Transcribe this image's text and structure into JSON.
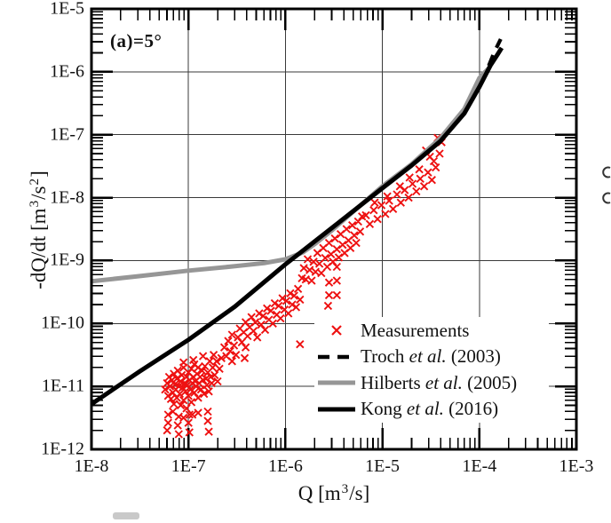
{
  "annotation": {
    "text": "(a)=5°"
  },
  "axes": {
    "x": {
      "title_parts": {
        "pre": "Q [m",
        "sup": "3",
        "post": "/s]"
      },
      "ticks": [
        "1E-8",
        "1E-7",
        "1E-6",
        "1E-5",
        "1E-4",
        "1E-3"
      ],
      "tick_logs": [
        -8,
        -7,
        -6,
        -5,
        -4,
        -3
      ],
      "log_range": [
        -8,
        -3
      ]
    },
    "y": {
      "title_parts": {
        "pre": "-dQ/dt [m",
        "sup1": "3",
        "mid": "/s",
        "sup2": "2",
        "post": "]"
      },
      "ticks": [
        "1E-5",
        "1E-6",
        "1E-7",
        "1E-8",
        "1E-9",
        "1E-10",
        "1E-11",
        "1E-12"
      ],
      "tick_logs": [
        -5,
        -6,
        -7,
        -8,
        -9,
        -10,
        -11,
        -12
      ],
      "log_range": [
        -12,
        -5
      ]
    }
  },
  "legend": {
    "items": [
      {
        "marker": "cross",
        "color": "#ee1111",
        "pre": "Measurements",
        "italic": "",
        "post": ""
      },
      {
        "marker": "dashed-line",
        "color": "#000000",
        "pre": "Troch ",
        "italic": "et al.",
        "post": " (2003)"
      },
      {
        "marker": "thick-line",
        "color": "#969696",
        "pre": "Hilberts ",
        "italic": "et al.",
        "post": " (2005)"
      },
      {
        "marker": "thick-line",
        "color": "#000000",
        "pre": "Kong ",
        "italic": "et al.",
        "post": " (2016)"
      }
    ]
  },
  "colors": {
    "measurements": "#ee1111",
    "troch": "#000000",
    "hilberts": "#969696",
    "kong": "#000000",
    "grid": "#3a3a3a",
    "frame": "#000000"
  },
  "artifacts": {
    "corner_smudge_color": "#bfbfbf",
    "edge_glyph_color": "#333333"
  },
  "chart_data": {
    "type": "scatter",
    "x_scale": "log",
    "y_scale": "log",
    "title": "",
    "xlabel": "Q [m^3/s]",
    "ylabel": "-dQ/dt [m^3/s^2]",
    "xlim": [
      1e-08,
      0.001
    ],
    "ylim": [
      1e-12,
      1e-05
    ],
    "grid": true,
    "legend_position": "lower right",
    "annotation": "(a)=5°",
    "series": [
      {
        "name": "Measurements",
        "type": "scatter",
        "marker": "x",
        "color": "#ee1111",
        "points_log10": [
          [
            -7.24,
            -11.05
          ],
          [
            -7.22,
            -10.95
          ],
          [
            -7.21,
            -11.15
          ],
          [
            -7.2,
            -10.85
          ],
          [
            -7.19,
            -11.0
          ],
          [
            -7.18,
            -11.2
          ],
          [
            -7.17,
            -10.9
          ],
          [
            -7.16,
            -11.1
          ],
          [
            -7.15,
            -10.8
          ],
          [
            -7.15,
            -11.28
          ],
          [
            -7.14,
            -10.97
          ],
          [
            -7.13,
            -11.05
          ],
          [
            -7.12,
            -10.88
          ],
          [
            -7.12,
            -11.18
          ],
          [
            -7.11,
            -10.75
          ],
          [
            -7.1,
            -11.0
          ],
          [
            -7.09,
            -11.12
          ],
          [
            -7.08,
            -10.92
          ],
          [
            -7.08,
            -11.3
          ],
          [
            -7.07,
            -10.82
          ],
          [
            -7.06,
            -11.02
          ],
          [
            -7.05,
            -10.7
          ],
          [
            -7.05,
            -11.22
          ],
          [
            -7.04,
            -10.95
          ],
          [
            -7.03,
            -11.08
          ],
          [
            -7.02,
            -10.85
          ],
          [
            -7.02,
            -11.35
          ],
          [
            -7.01,
            -10.98
          ],
          [
            -7.0,
            -10.78
          ],
          [
            -7.0,
            -11.15
          ],
          [
            -6.99,
            -10.9
          ],
          [
            -6.98,
            -11.05
          ],
          [
            -6.97,
            -10.72
          ],
          [
            -6.97,
            -11.25
          ],
          [
            -6.96,
            -10.95
          ],
          [
            -6.95,
            -10.85
          ],
          [
            -6.94,
            -11.1
          ],
          [
            -6.94,
            -10.65
          ],
          [
            -6.93,
            -10.92
          ],
          [
            -6.92,
            -11.0
          ],
          [
            -6.91,
            -10.8
          ],
          [
            -6.9,
            -11.18
          ],
          [
            -6.9,
            -10.7
          ],
          [
            -6.89,
            -10.95
          ],
          [
            -6.88,
            -10.85
          ],
          [
            -6.87,
            -11.05
          ],
          [
            -6.86,
            -10.75
          ],
          [
            -6.85,
            -10.9
          ],
          [
            -6.84,
            -11.12
          ],
          [
            -6.83,
            -10.68
          ],
          [
            -6.82,
            -10.88
          ],
          [
            -6.81,
            -10.98
          ],
          [
            -6.8,
            -10.78
          ],
          [
            -6.79,
            -11.08
          ],
          [
            -6.78,
            -10.6
          ],
          [
            -6.77,
            -10.85
          ],
          [
            -6.76,
            -10.95
          ],
          [
            -6.75,
            -10.7
          ],
          [
            -6.73,
            -10.82
          ],
          [
            -6.71,
            -10.6
          ],
          [
            -6.7,
            -10.92
          ],
          [
            -6.68,
            -10.72
          ],
          [
            -6.66,
            -10.55
          ],
          [
            -7.05,
            -10.62
          ],
          [
            -6.95,
            -10.58
          ],
          [
            -6.85,
            -10.52
          ],
          [
            -6.74,
            -10.5
          ],
          [
            -7.21,
            -11.45
          ],
          [
            -7.21,
            -11.58
          ],
          [
            -7.22,
            -11.7
          ],
          [
            -7.1,
            -11.48
          ],
          [
            -7.11,
            -11.62
          ],
          [
            -7.1,
            -11.76
          ],
          [
            -6.99,
            -11.45
          ],
          [
            -7.0,
            -11.58
          ],
          [
            -6.99,
            -11.73
          ],
          [
            -6.96,
            -11.45
          ],
          [
            -6.8,
            -11.4
          ],
          [
            -6.8,
            -11.55
          ],
          [
            -6.79,
            -11.72
          ],
          [
            -7.05,
            -11.5
          ],
          [
            -7.16,
            -11.4
          ],
          [
            -6.9,
            -11.42
          ],
          [
            -6.63,
            -10.38
          ],
          [
            -6.61,
            -10.52
          ],
          [
            -6.59,
            -10.28
          ],
          [
            -6.57,
            -10.44
          ],
          [
            -6.55,
            -10.18
          ],
          [
            -6.53,
            -10.35
          ],
          [
            -6.51,
            -10.5
          ],
          [
            -6.49,
            -10.22
          ],
          [
            -6.47,
            -10.08
          ],
          [
            -6.45,
            -10.3
          ],
          [
            -6.43,
            -10.14
          ],
          [
            -6.41,
            -9.98
          ],
          [
            -6.41,
            -10.38
          ],
          [
            -6.39,
            -10.2
          ],
          [
            -6.37,
            -10.06
          ],
          [
            -6.35,
            -9.9
          ],
          [
            -6.33,
            -10.12
          ],
          [
            -6.31,
            -9.98
          ],
          [
            -6.29,
            -10.22
          ],
          [
            -6.27,
            -9.84
          ],
          [
            -6.25,
            -10.02
          ],
          [
            -6.23,
            -9.88
          ],
          [
            -6.21,
            -10.1
          ],
          [
            -6.19,
            -9.76
          ],
          [
            -6.17,
            -9.94
          ],
          [
            -6.15,
            -9.8
          ],
          [
            -6.13,
            -10.0
          ],
          [
            -6.11,
            -9.68
          ],
          [
            -6.09,
            -9.86
          ],
          [
            -6.07,
            -9.72
          ],
          [
            -6.05,
            -9.92
          ],
          [
            -6.03,
            -9.6
          ],
          [
            -6.01,
            -9.78
          ],
          [
            -5.99,
            -9.64
          ],
          [
            -5.97,
            -9.84
          ],
          [
            -5.95,
            -9.52
          ],
          [
            -5.93,
            -9.7
          ],
          [
            -5.91,
            -9.56
          ],
          [
            -5.89,
            -9.74
          ],
          [
            -5.87,
            -9.45
          ],
          [
            -5.85,
            -9.62
          ],
          [
            -6.55,
            -10.6
          ],
          [
            -6.42,
            -10.55
          ],
          [
            -5.85,
            -10.33
          ],
          [
            -5.83,
            -9.28
          ],
          [
            -5.81,
            -9.12
          ],
          [
            -5.79,
            -9.3
          ],
          [
            -5.77,
            -8.98
          ],
          [
            -5.75,
            -9.15
          ],
          [
            -5.73,
            -9.32
          ],
          [
            -5.71,
            -9.02
          ],
          [
            -5.69,
            -9.18
          ],
          [
            -5.67,
            -8.88
          ],
          [
            -5.65,
            -9.05
          ],
          [
            -5.63,
            -9.2
          ],
          [
            -5.61,
            -8.8
          ],
          [
            -5.59,
            -8.96
          ],
          [
            -5.57,
            -9.1
          ],
          [
            -5.55,
            -8.72
          ],
          [
            -5.53,
            -8.9
          ],
          [
            -5.51,
            -9.02
          ],
          [
            -5.49,
            -8.65
          ],
          [
            -5.47,
            -8.82
          ],
          [
            -5.45,
            -8.95
          ],
          [
            -5.43,
            -8.58
          ],
          [
            -5.41,
            -8.75
          ],
          [
            -5.39,
            -8.88
          ],
          [
            -5.37,
            -8.5
          ],
          [
            -5.35,
            -8.68
          ],
          [
            -5.33,
            -8.8
          ],
          [
            -5.31,
            -8.44
          ],
          [
            -5.29,
            -8.6
          ],
          [
            -5.27,
            -8.72
          ],
          [
            -5.25,
            -8.38
          ],
          [
            -5.23,
            -8.54
          ],
          [
            -5.21,
            -8.3
          ],
          [
            -5.55,
            -9.35
          ],
          [
            -5.55,
            -9.55
          ],
          [
            -5.56,
            -9.72
          ],
          [
            -5.47,
            -9.1
          ],
          [
            -5.47,
            -9.32
          ],
          [
            -5.47,
            -9.55
          ],
          [
            -5.17,
            -8.28
          ],
          [
            -5.13,
            -8.42
          ],
          [
            -5.09,
            -8.2
          ],
          [
            -5.05,
            -8.34
          ],
          [
            -5.01,
            -8.12
          ],
          [
            -4.97,
            -8.26
          ],
          [
            -4.93,
            -8.05
          ],
          [
            -4.89,
            -8.18
          ],
          [
            -4.85,
            -7.95
          ],
          [
            -4.81,
            -8.08
          ],
          [
            -4.77,
            -7.88
          ],
          [
            -4.73,
            -8.0
          ],
          [
            -4.69,
            -7.78
          ],
          [
            -4.65,
            -7.9
          ],
          [
            -4.61,
            -7.7
          ],
          [
            -4.57,
            -7.82
          ],
          [
            -4.53,
            -7.6
          ],
          [
            -4.49,
            -7.72
          ],
          [
            -4.45,
            -7.52
          ],
          [
            -4.41,
            -7.3
          ],
          [
            -4.39,
            -7.12
          ],
          [
            -4.43,
            -7.05
          ],
          [
            -4.47,
            -7.42
          ],
          [
            -4.51,
            -7.35
          ],
          [
            -4.55,
            -7.25
          ],
          [
            -4.62,
            -7.55
          ],
          [
            -4.72,
            -7.68
          ],
          [
            -4.82,
            -7.82
          ],
          [
            -4.95,
            -7.98
          ],
          [
            -5.08,
            -8.08
          ]
        ]
      },
      {
        "name": "Troch et al. (2003)",
        "type": "line",
        "style": "dashed",
        "color": "#000000",
        "width": 4.2,
        "points_log10": [
          [
            -8,
            -11.28
          ],
          [
            -7.5,
            -10.76
          ],
          [
            -7,
            -10.26
          ],
          [
            -6.52,
            -9.73
          ],
          [
            -6,
            -9.06
          ],
          [
            -5.52,
            -8.48
          ],
          [
            -5,
            -7.85
          ],
          [
            -4.7,
            -7.49
          ],
          [
            -4.4,
            -7.1
          ],
          [
            -4.155,
            -6.66
          ],
          [
            -4,
            -6.22
          ],
          [
            -3.92,
            -5.97
          ],
          [
            -3.85,
            -5.7
          ],
          [
            -3.78,
            -5.48
          ]
        ]
      },
      {
        "name": "Hilberts et al. (2005)",
        "type": "line",
        "style": "solid",
        "color": "#969696",
        "width": 5,
        "points_log10": [
          [
            -8,
            -9.33
          ],
          [
            -7.52,
            -9.25
          ],
          [
            -7,
            -9.16
          ],
          [
            -6.52,
            -9.09
          ],
          [
            -6.22,
            -9.04
          ],
          [
            -6,
            -8.98
          ],
          [
            -5.82,
            -8.87
          ],
          [
            -5.7,
            -8.74
          ],
          [
            -5.52,
            -8.52
          ],
          [
            -5.3,
            -8.22
          ],
          [
            -5,
            -7.82
          ],
          [
            -4.7,
            -7.47
          ],
          [
            -4.4,
            -7.05
          ],
          [
            -4.155,
            -6.59
          ],
          [
            -4,
            -6.1
          ],
          [
            -3.94,
            -6.0
          ],
          [
            -3.9,
            -5.94
          ]
        ]
      },
      {
        "name": "Kong et al. (2016)",
        "type": "line",
        "style": "solid",
        "color": "#000000",
        "width": 5,
        "points_log10": [
          [
            -8,
            -11.28
          ],
          [
            -7.5,
            -10.76
          ],
          [
            -7,
            -10.26
          ],
          [
            -6.52,
            -9.73
          ],
          [
            -6,
            -9.06
          ],
          [
            -5.52,
            -8.48
          ],
          [
            -5,
            -7.85
          ],
          [
            -4.7,
            -7.49
          ],
          [
            -4.4,
            -7.1
          ],
          [
            -4.155,
            -6.66
          ],
          [
            -4,
            -6.24
          ],
          [
            -3.886,
            -5.9
          ],
          [
            -3.81,
            -5.72
          ],
          [
            -3.77,
            -5.62
          ]
        ]
      }
    ]
  }
}
